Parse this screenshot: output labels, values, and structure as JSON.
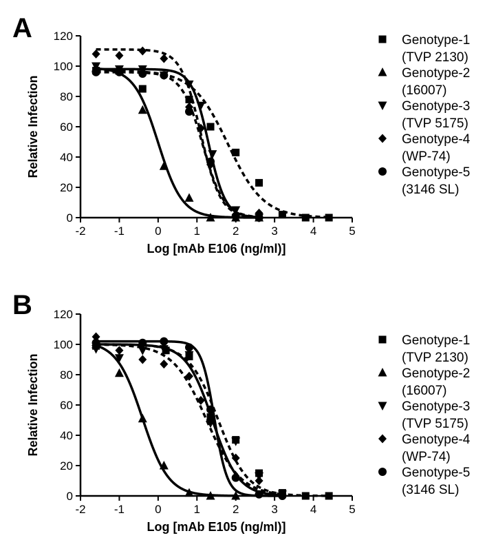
{
  "chart_data": [
    {
      "type": "scatter",
      "panel_label": "A",
      "xlabel": "Log [mAb E106 (ng/ml)]",
      "ylabel": "Relative Infection",
      "xlim": [
        -2,
        5
      ],
      "ylim": [
        0,
        120
      ],
      "xticks": [
        "-2",
        "-1",
        "0",
        "1",
        "2",
        "3",
        "4",
        "5"
      ],
      "yticks": [
        "0",
        "20",
        "40",
        "60",
        "80",
        "100",
        "120"
      ],
      "grid": false,
      "legend_position": "right",
      "series": [
        {
          "name": "Genotype-1",
          "sub": "(TVP 2130)",
          "marker": "square",
          "line": "dashed",
          "points": [
            [
              -1.6,
              97
            ],
            [
              -0.4,
              85
            ],
            [
              0.8,
              78
            ],
            [
              1.35,
              60
            ],
            [
              2.0,
              43
            ],
            [
              2.6,
              23
            ],
            [
              3.2,
              2
            ],
            [
              3.8,
              0
            ],
            [
              4.4,
              0
            ]
          ],
          "curve": {
            "top": 97,
            "bottom": 0,
            "ec50": 1.8,
            "slope": 0.95
          }
        },
        {
          "name": "Genotype-2",
          "sub": "(16007)",
          "marker": "triangle-up",
          "line": "solid",
          "points": [
            [
              -1.6,
              99
            ],
            [
              -1.0,
              97
            ],
            [
              -0.4,
              71
            ],
            [
              0.15,
              34
            ],
            [
              0.8,
              13
            ],
            [
              1.35,
              0
            ],
            [
              2.0,
              0
            ],
            [
              2.6,
              0
            ]
          ],
          "curve": {
            "top": 99,
            "bottom": 0,
            "ec50": 0.0,
            "slope": 1.4
          }
        },
        {
          "name": "Genotype-3",
          "sub": "(TVP 5175)",
          "marker": "triangle-down",
          "line": "solid",
          "points": [
            [
              -1.6,
              100
            ],
            [
              -1.0,
              98
            ],
            [
              -0.4,
              98
            ],
            [
              0.15,
              94
            ],
            [
              0.8,
              88
            ],
            [
              1.1,
              74
            ],
            [
              1.4,
              42
            ],
            [
              2.0,
              5
            ],
            [
              2.6,
              0
            ]
          ],
          "curve": {
            "top": 98,
            "bottom": 0,
            "ec50": 1.3,
            "slope": 2.0
          }
        },
        {
          "name": "Genotype-4",
          "sub": "(WP-74)",
          "marker": "diamond",
          "line": "dashed",
          "points": [
            [
              -1.6,
              108
            ],
            [
              -1.0,
              107
            ],
            [
              -0.4,
              110
            ],
            [
              0.15,
              105
            ],
            [
              0.8,
              73
            ],
            [
              1.1,
              59
            ],
            [
              1.35,
              35
            ],
            [
              2.0,
              2
            ],
            [
              2.6,
              3
            ]
          ],
          "curve": {
            "top": 111,
            "bottom": 0,
            "ec50": 1.1,
            "slope": 1.7
          }
        },
        {
          "name": "Genotype-5",
          "sub": "(3146  SL)",
          "marker": "circle",
          "line": "dashed",
          "points": [
            [
              -1.6,
              96
            ],
            [
              -1.0,
              96
            ],
            [
              -0.4,
              95
            ],
            [
              0.15,
              94
            ],
            [
              0.8,
              70
            ],
            [
              1.35,
              37
            ],
            [
              2.0,
              1
            ],
            [
              2.6,
              0
            ]
          ],
          "curve": {
            "top": 96,
            "bottom": 0,
            "ec50": 1.15,
            "slope": 1.6
          }
        }
      ]
    },
    {
      "type": "scatter",
      "panel_label": "B",
      "xlabel": "Log [mAb E105 (ng/ml)]",
      "ylabel": "Relative Infection",
      "xlim": [
        -2,
        5
      ],
      "ylim": [
        0,
        120
      ],
      "xticks": [
        "-2",
        "-1",
        "0",
        "1",
        "2",
        "3",
        "4",
        "5"
      ],
      "yticks": [
        "0",
        "20",
        "40",
        "60",
        "80",
        "100",
        "120"
      ],
      "grid": false,
      "legend_position": "right",
      "series": [
        {
          "name": "Genotype-1",
          "sub": "(TVP 2130)",
          "marker": "square",
          "line": "dashed",
          "points": [
            [
              -1.6,
              99
            ],
            [
              0.2,
              96
            ],
            [
              0.8,
              92
            ],
            [
              1.35,
              52
            ],
            [
              2.0,
              37
            ],
            [
              2.6,
              15
            ],
            [
              3.2,
              2
            ],
            [
              3.8,
              0
            ],
            [
              4.4,
              0
            ]
          ],
          "curve": {
            "top": 100,
            "bottom": 0,
            "ec50": 1.55,
            "slope": 1.15
          }
        },
        {
          "name": "Genotype-2",
          "sub": "(16007)",
          "marker": "triangle-up",
          "line": "solid",
          "points": [
            [
              -1.6,
              100
            ],
            [
              -1.0,
              81
            ],
            [
              -0.4,
              51
            ],
            [
              0.15,
              20
            ],
            [
              0.8,
              2
            ],
            [
              1.35,
              0
            ],
            [
              2.0,
              0
            ]
          ],
          "curve": {
            "top": 102,
            "bottom": 0,
            "ec50": -0.4,
            "slope": 1.3
          }
        },
        {
          "name": "Genotype-3",
          "sub": "(TVP 5175)",
          "marker": "triangle-down",
          "line": "solid",
          "points": [
            [
              -1.6,
              97
            ],
            [
              -1.0,
              91
            ],
            [
              -0.4,
              96
            ],
            [
              0.15,
              97
            ],
            [
              0.8,
              93
            ],
            [
              1.35,
              48
            ],
            [
              2.0,
              36
            ],
            [
              2.6,
              13
            ],
            [
              3.2,
              1
            ]
          ],
          "curve": {
            "top": 100,
            "bottom": 0,
            "ec50": 1.4,
            "slope": 1.3
          }
        },
        {
          "name": "Genotype-4",
          "sub": "(WP-74)",
          "marker": "diamond",
          "line": "dashed",
          "points": [
            [
              -1.6,
              105
            ],
            [
              -1.0,
              96
            ],
            [
              -0.4,
              90
            ],
            [
              0.15,
              87
            ],
            [
              0.8,
              79
            ],
            [
              1.1,
              63
            ],
            [
              1.35,
              50
            ],
            [
              2.0,
              25
            ],
            [
              2.6,
              10
            ],
            [
              3.2,
              1
            ]
          ],
          "curve": {
            "top": 100,
            "bottom": 0,
            "ec50": 1.25,
            "slope": 1.0
          }
        },
        {
          "name": "Genotype-5",
          "sub": "(3146  SL)",
          "marker": "circle",
          "line": "solid",
          "points": [
            [
              -1.6,
              101
            ],
            [
              -0.4,
              101
            ],
            [
              0.15,
              102
            ],
            [
              0.8,
              98
            ],
            [
              1.35,
              57
            ],
            [
              2.0,
              12
            ],
            [
              2.6,
              1
            ],
            [
              3.2,
              0
            ]
          ],
          "curve": {
            "top": 102,
            "bottom": 0,
            "ec50": 1.45,
            "slope": 2.6
          }
        }
      ]
    }
  ]
}
